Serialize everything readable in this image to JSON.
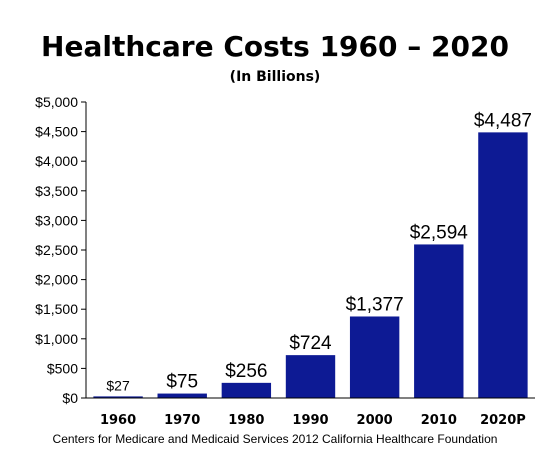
{
  "chart_data": {
    "type": "bar",
    "title": "Healthcare Costs 1960 – 2020",
    "subtitle": "(In Billions)",
    "categories": [
      "1960",
      "1970",
      "1980",
      "1990",
      "2000",
      "2010",
      "2020P"
    ],
    "values": [
      27,
      75,
      256,
      724,
      1377,
      2594,
      4487
    ],
    "data_labels": [
      "$27",
      "$75",
      "$256",
      "$724",
      "$1,377",
      "$2,594",
      "$4,487"
    ],
    "yticks": [
      "$0",
      "$500",
      "$1,000",
      "$1,500",
      "$2,000",
      "$2,500",
      "$3,000",
      "$3,500",
      "$4,000",
      "$4,500",
      "$5,000"
    ],
    "ylim": [
      0,
      5000
    ],
    "xlabel": "",
    "ylabel": "",
    "grid": false,
    "legend": "none",
    "bar_color": "#0d1a94",
    "source": "Centers for Medicare and Medicaid Services 2012 California Healthcare Foundation"
  }
}
